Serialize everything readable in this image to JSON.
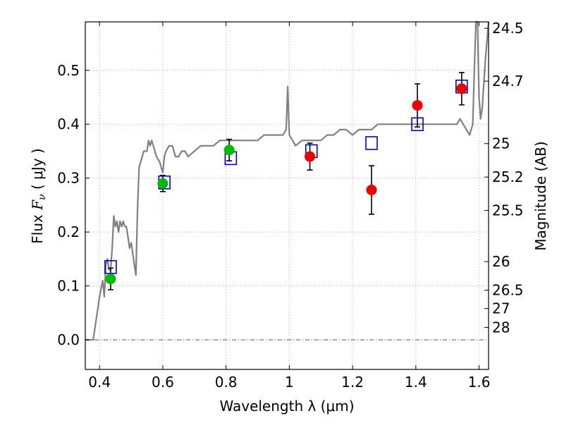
{
  "chart_data": {
    "type": "scatter",
    "title": "",
    "xlabel": "Wavelength  λ (μm)",
    "xlim": [
      0.355,
      1.63
    ],
    "ylim": [
      -0.055,
      0.59
    ],
    "grid": true,
    "x_ticks": [
      0.4,
      0.6,
      0.8,
      1.0,
      1.2,
      1.4,
      1.6
    ],
    "x_tick_labels": [
      "0.4",
      "0.6",
      "0.8",
      "1",
      "1.2",
      "1.4",
      "1.6"
    ],
    "y_ticks": [
      0.0,
      0.1,
      0.2,
      0.3,
      0.4,
      0.5
    ],
    "y_tick_labels": [
      "0.0",
      "0.1",
      "0.2",
      "0.3",
      "0.4",
      "0.5"
    ],
    "ylabel": {
      "prefix": "Flux  ",
      "symbol": "F",
      "subscript": "ν",
      "units": "  ( μJy )"
    },
    "right_axis": {
      "label": "Magnitude (AB)",
      "ticks": [
        {
          "flux": 0.578,
          "label": "24.5"
        },
        {
          "flux": 0.48,
          "label": "24.7"
        },
        {
          "flux": 0.364,
          "label": "25"
        },
        {
          "flux": 0.302,
          "label": "25.2"
        },
        {
          "flux": 0.24,
          "label": "25.5"
        },
        {
          "flux": 0.145,
          "label": "26"
        },
        {
          "flux": 0.092,
          "label": "26.5"
        },
        {
          "flux": 0.058,
          "label": "27"
        },
        {
          "flux": 0.023,
          "label": "28"
        }
      ]
    },
    "colors": {
      "model": "#808080",
      "green_points": "#00bb00",
      "red_points": "#ee0000",
      "boxes": "#0000cc",
      "errorbars": "#000000",
      "grid": "#b0b0b0"
    },
    "series": [
      {
        "role": "model_spectrum",
        "x": [
          0.355,
          0.38,
          0.39,
          0.4,
          0.41,
          0.415,
          0.42,
          0.425,
          0.43,
          0.435,
          0.44,
          0.445,
          0.45,
          0.455,
          0.46,
          0.465,
          0.47,
          0.475,
          0.48,
          0.485,
          0.49,
          0.495,
          0.5,
          0.505,
          0.51,
          0.515,
          0.52,
          0.525,
          0.53,
          0.54,
          0.55,
          0.555,
          0.56,
          0.565,
          0.57,
          0.575,
          0.58,
          0.59,
          0.6,
          0.605,
          0.61,
          0.62,
          0.63,
          0.64,
          0.65,
          0.66,
          0.67,
          0.68,
          0.7,
          0.72,
          0.74,
          0.76,
          0.78,
          0.8,
          0.82,
          0.84,
          0.86,
          0.88,
          0.9,
          0.92,
          0.94,
          0.96,
          0.98,
          0.99,
          0.995,
          1.0,
          1.01,
          1.02,
          1.04,
          1.06,
          1.08,
          1.1,
          1.12,
          1.14,
          1.16,
          1.18,
          1.2,
          1.22,
          1.24,
          1.26,
          1.28,
          1.3,
          1.32,
          1.34,
          1.36,
          1.38,
          1.4,
          1.42,
          1.44,
          1.46,
          1.48,
          1.5,
          1.52,
          1.53,
          1.54,
          1.56,
          1.57,
          1.58,
          1.585,
          1.59,
          1.595,
          1.6,
          1.605,
          1.61,
          1.62,
          1.63
        ],
        "y": [
          0.0,
          0.0,
          0.04,
          0.08,
          0.11,
          0.08,
          0.14,
          0.15,
          0.13,
          0.13,
          0.17,
          0.23,
          0.21,
          0.22,
          0.2,
          0.22,
          0.21,
          0.22,
          0.21,
          0.21,
          0.19,
          0.17,
          0.18,
          0.16,
          0.14,
          0.12,
          0.24,
          0.32,
          0.33,
          0.35,
          0.35,
          0.37,
          0.36,
          0.37,
          0.36,
          0.35,
          0.34,
          0.33,
          0.31,
          0.34,
          0.35,
          0.36,
          0.36,
          0.34,
          0.34,
          0.35,
          0.35,
          0.34,
          0.35,
          0.36,
          0.36,
          0.36,
          0.37,
          0.37,
          0.37,
          0.37,
          0.37,
          0.37,
          0.37,
          0.38,
          0.38,
          0.38,
          0.38,
          0.39,
          0.47,
          0.38,
          0.37,
          0.36,
          0.37,
          0.37,
          0.37,
          0.37,
          0.38,
          0.38,
          0.39,
          0.39,
          0.38,
          0.39,
          0.39,
          0.39,
          0.4,
          0.4,
          0.4,
          0.4,
          0.4,
          0.4,
          0.4,
          0.4,
          0.4,
          0.4,
          0.4,
          0.4,
          0.4,
          0.4,
          0.41,
          0.39,
          0.38,
          0.4,
          0.5,
          0.6,
          0.6,
          0.45,
          0.41,
          0.43,
          0.52,
          0.6
        ]
      },
      {
        "role": "observed_green",
        "x": [
          0.435,
          0.6,
          0.81
        ],
        "y": [
          0.113,
          0.29,
          0.352
        ],
        "yerr": [
          0.02,
          0.015,
          0.02
        ]
      },
      {
        "role": "observed_red",
        "x": [
          1.065,
          1.26,
          1.405,
          1.545
        ],
        "y": [
          0.34,
          0.278,
          0.435,
          0.466
        ],
        "yerr": [
          0.025,
          0.045,
          0.04,
          0.03
        ]
      },
      {
        "role": "model_band_boxes",
        "x": [
          0.435,
          0.605,
          0.815,
          1.07,
          1.26,
          1.405,
          1.545
        ],
        "y": [
          0.135,
          0.292,
          0.337,
          0.35,
          0.365,
          0.4,
          0.47
        ]
      }
    ]
  }
}
